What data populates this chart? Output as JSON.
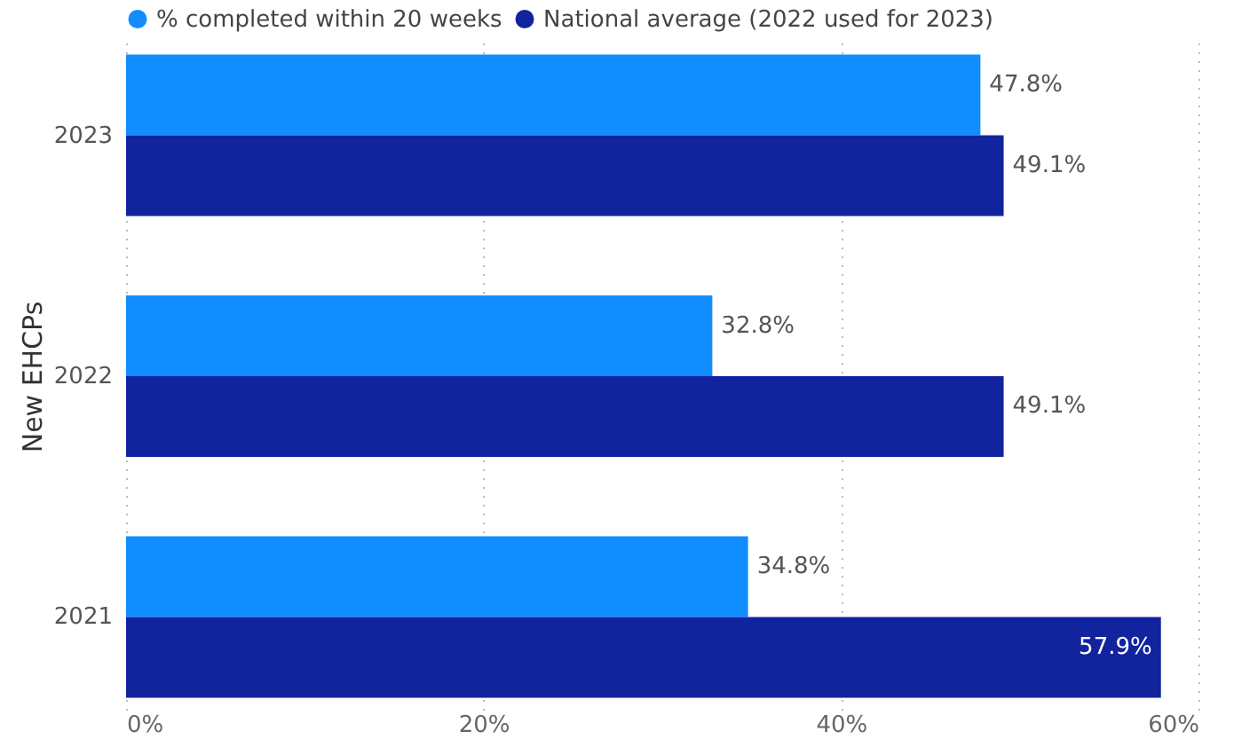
{
  "chart_data": {
    "type": "bar",
    "orientation": "horizontal",
    "ylabel": "New EHCPs",
    "categories": [
      "2023",
      "2022",
      "2021"
    ],
    "series": [
      {
        "name": "% completed within 20 weeks",
        "color": "#118dff",
        "values": [
          47.8,
          32.8,
          34.8
        ],
        "value_labels": [
          "47.8%",
          "32.8%",
          "34.8%"
        ]
      },
      {
        "name": "National average (2022 used for 2023)",
        "color": "#12239e",
        "values": [
          49.1,
          49.1,
          57.9
        ],
        "value_labels": [
          "49.1%",
          "49.1%",
          "57.9%"
        ]
      }
    ],
    "xlim": [
      0,
      60
    ],
    "xticks": [
      {
        "value": 0,
        "label": "0%"
      },
      {
        "value": 20,
        "label": "20%"
      },
      {
        "value": 40,
        "label": "40%"
      },
      {
        "value": 60,
        "label": "60%"
      }
    ],
    "grid": "x",
    "legend": "top left"
  }
}
